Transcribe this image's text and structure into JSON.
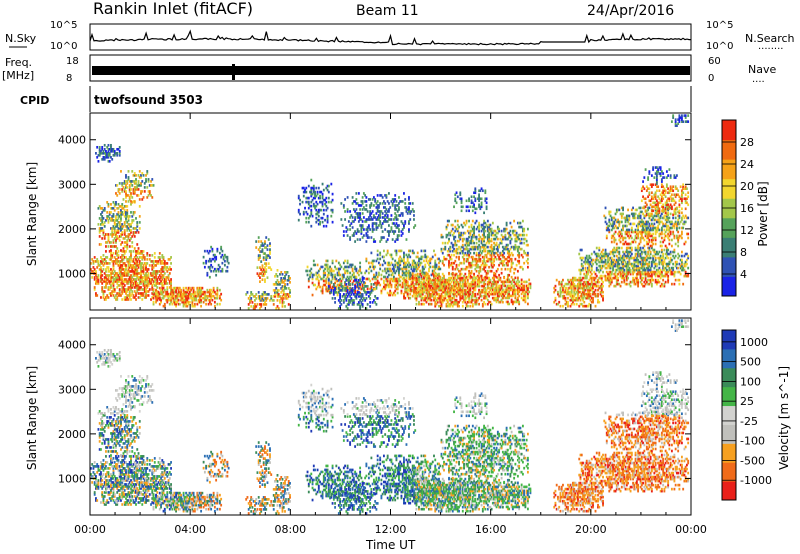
{
  "header": {
    "title": "Rankin Inlet (fitACF)",
    "beam": "Beam 11",
    "date": "24/Apr/2016"
  },
  "panels": {
    "nsky": {
      "left_label": "N.Sky",
      "right_label": "N.Search",
      "left_ticks": [
        "10^5",
        "10^0"
      ],
      "right_ticks": [
        "10^5",
        "10^0"
      ],
      "right_dots": "........"
    },
    "freq": {
      "left_label_top": "Freq.",
      "left_label_bottom": "[MHz]",
      "right_label": "Nave",
      "left_ticks": [
        "18",
        "8"
      ],
      "right_ticks": [
        "60",
        "0"
      ],
      "right_dots": "...."
    },
    "cpid": {
      "label": "CPID",
      "value": "twofsound 3503"
    }
  },
  "colors": {
    "power": [
      "#1a23e6",
      "#2f52b4",
      "#3a7e74",
      "#55a25a",
      "#a3c74a",
      "#f2d62e",
      "#f5a218",
      "#f06a10",
      "#ee2a10"
    ],
    "velocity": [
      "#e9201a",
      "#f06b1a",
      "#f6a020",
      "#c0c0bc",
      "#d2d2cf",
      "#44b547",
      "#3a8b59",
      "#2b6fb4",
      "#1f3ab6"
    ]
  },
  "chart_data": [
    {
      "type": "heatmap",
      "name": "power",
      "xlabel": "",
      "ylabel": "Slant Range [km]",
      "x_ticks": [
        "00:00",
        "04:00",
        "08:00",
        "12:00",
        "16:00",
        "20:00",
        "00:00"
      ],
      "x_hours": [
        0,
        4,
        8,
        12,
        16,
        20,
        24
      ],
      "xlim": [
        0,
        24
      ],
      "ylim": [
        180,
        4600
      ],
      "y_ticks": [
        1000,
        2000,
        3000,
        4000
      ],
      "colorbar": {
        "label": "Power [dB]",
        "ticks": [
          4,
          8,
          12,
          16,
          20,
          24,
          28
        ],
        "range": [
          0,
          32
        ]
      }
    },
    {
      "type": "heatmap",
      "name": "velocity",
      "xlabel": "Time UT",
      "ylabel": "Slant Range [km]",
      "x_ticks": [
        "00:00",
        "04:00",
        "08:00",
        "12:00",
        "16:00",
        "20:00",
        "00:00"
      ],
      "x_hours": [
        0,
        4,
        8,
        12,
        16,
        20,
        24
      ],
      "xlim": [
        0,
        24
      ],
      "ylim": [
        180,
        4600
      ],
      "y_ticks": [
        1000,
        2000,
        3000,
        4000
      ],
      "colorbar": {
        "label": "Velocity [m s^-1]",
        "ticks": [
          "1000",
          "500",
          "100",
          "25",
          "-25",
          "-100",
          "-500",
          "-1000"
        ]
      }
    }
  ]
}
